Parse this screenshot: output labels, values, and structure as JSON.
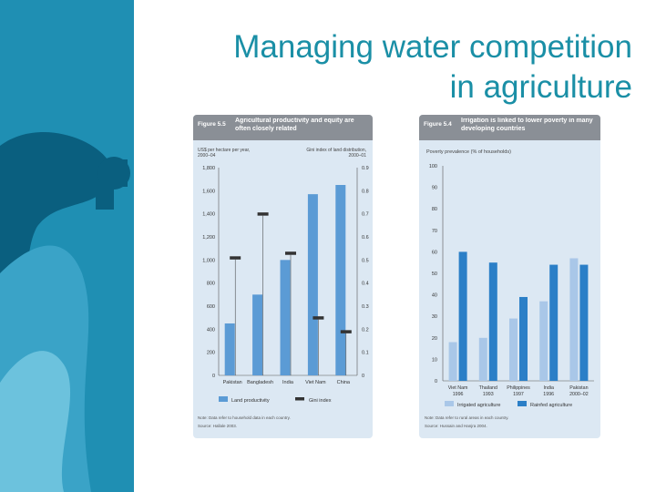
{
  "slide": {
    "title_line1": "Managing water competition",
    "title_line2": "in agriculture"
  },
  "colors": {
    "band_dark": "#0a5f7f",
    "band_mid": "#1f8fb3",
    "band_light": "#4fb2d1",
    "title": "#1a8fa6",
    "panel_bg": "#dce8f3",
    "header_bg": "#8a8f96",
    "bar_blue": "#5b9bd5",
    "bar_dark": "#2b7fc7",
    "bar_light": "#a9c7e8",
    "gini_marker": "#333333"
  },
  "chart_data": [
    {
      "type": "bar",
      "figure_label": "Figure 5.5",
      "title": "Agricultural productivity and equity are often closely related",
      "ylabel_left": "US$ per hectare per year, 2000–04",
      "ylabel_right": "Gini index of land distribution, 2000–01",
      "categories": [
        "Pakistan",
        "Bangladesh",
        "India",
        "Viet Nam",
        "China"
      ],
      "ylim_left": [
        0,
        1800
      ],
      "yticks_left": [
        "0",
        "200",
        "400",
        "600",
        "800",
        "1,000",
        "1,200",
        "1,400",
        "1,600",
        "1,800"
      ],
      "ylim_right": [
        0,
        0.9
      ],
      "yticks_right": [
        "0",
        "0.1",
        "0.2",
        "0.3",
        "0.4",
        "0.5",
        "0.6",
        "0.7",
        "0.8",
        "0.9"
      ],
      "series": [
        {
          "name": "Land productivity",
          "axis": "left",
          "values": [
            450,
            700,
            1000,
            1570,
            1650
          ]
        },
        {
          "name": "Gini index",
          "axis": "right",
          "values": [
            0.51,
            0.7,
            0.53,
            0.25,
            0.19
          ]
        }
      ],
      "note": "Note: Data refer to household data in each country.",
      "source": "Source: Hallale 2003."
    },
    {
      "type": "bar",
      "figure_label": "Figure 5.4",
      "title": "Irrigation is linked to lower poverty in many developing countries",
      "ylabel": "Poverty prevalence (% of households)",
      "categories": [
        "Viet Nam 1996",
        "Thailand 1993",
        "Philippines 1997",
        "India 1996",
        "Pakistan 2000–02"
      ],
      "ylim": [
        0,
        100
      ],
      "yticks": [
        "0",
        "10",
        "20",
        "30",
        "40",
        "50",
        "60",
        "70",
        "80",
        "90",
        "100"
      ],
      "series": [
        {
          "name": "Irrigated agriculture",
          "values": [
            18,
            20,
            29,
            37,
            57
          ]
        },
        {
          "name": "Rainfed agriculture",
          "values": [
            60,
            55,
            39,
            54,
            54
          ]
        }
      ],
      "note": "Note: Data refer to rural areas in each country.",
      "source": "Source: Hussain and Hanjra 2004."
    }
  ]
}
